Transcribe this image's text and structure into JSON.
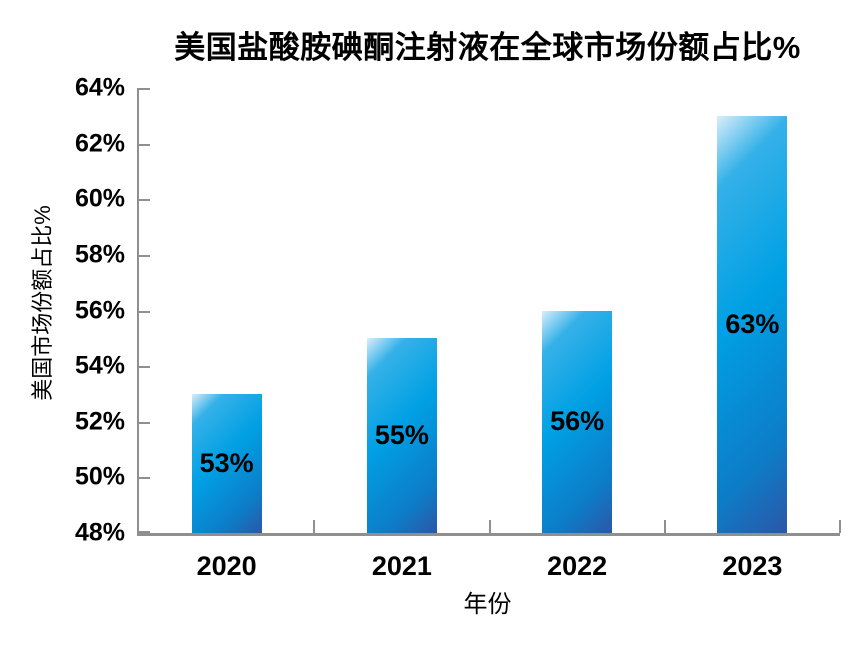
{
  "chart_data": {
    "type": "bar",
    "title": "美国盐酸胺碘酮注射液在全球市场份额占比%",
    "xlabel": "年份",
    "ylabel": "美国市场份额占比%",
    "categories": [
      "2020",
      "2021",
      "2022",
      "2023"
    ],
    "values": [
      53,
      55,
      56,
      63
    ],
    "bar_labels": [
      "53%",
      "55%",
      "56%",
      "63%"
    ],
    "ylim": [
      48,
      64
    ],
    "ytick_step": 2,
    "ytick_labels": [
      "64%",
      "62%",
      "60%",
      "58%",
      "56%",
      "54%",
      "52%",
      "50%",
      "48%"
    ],
    "grid": false,
    "legend_position": "none",
    "bar_label_position": "center-inside",
    "colors": {
      "bar_gradient": [
        "#d9eefb",
        "#35b1e8",
        "#00a0e4",
        "#0d7cc7",
        "#2b57a8"
      ],
      "axis": "#8f8f8f",
      "text": "#000000",
      "background": "#ffffff"
    }
  }
}
